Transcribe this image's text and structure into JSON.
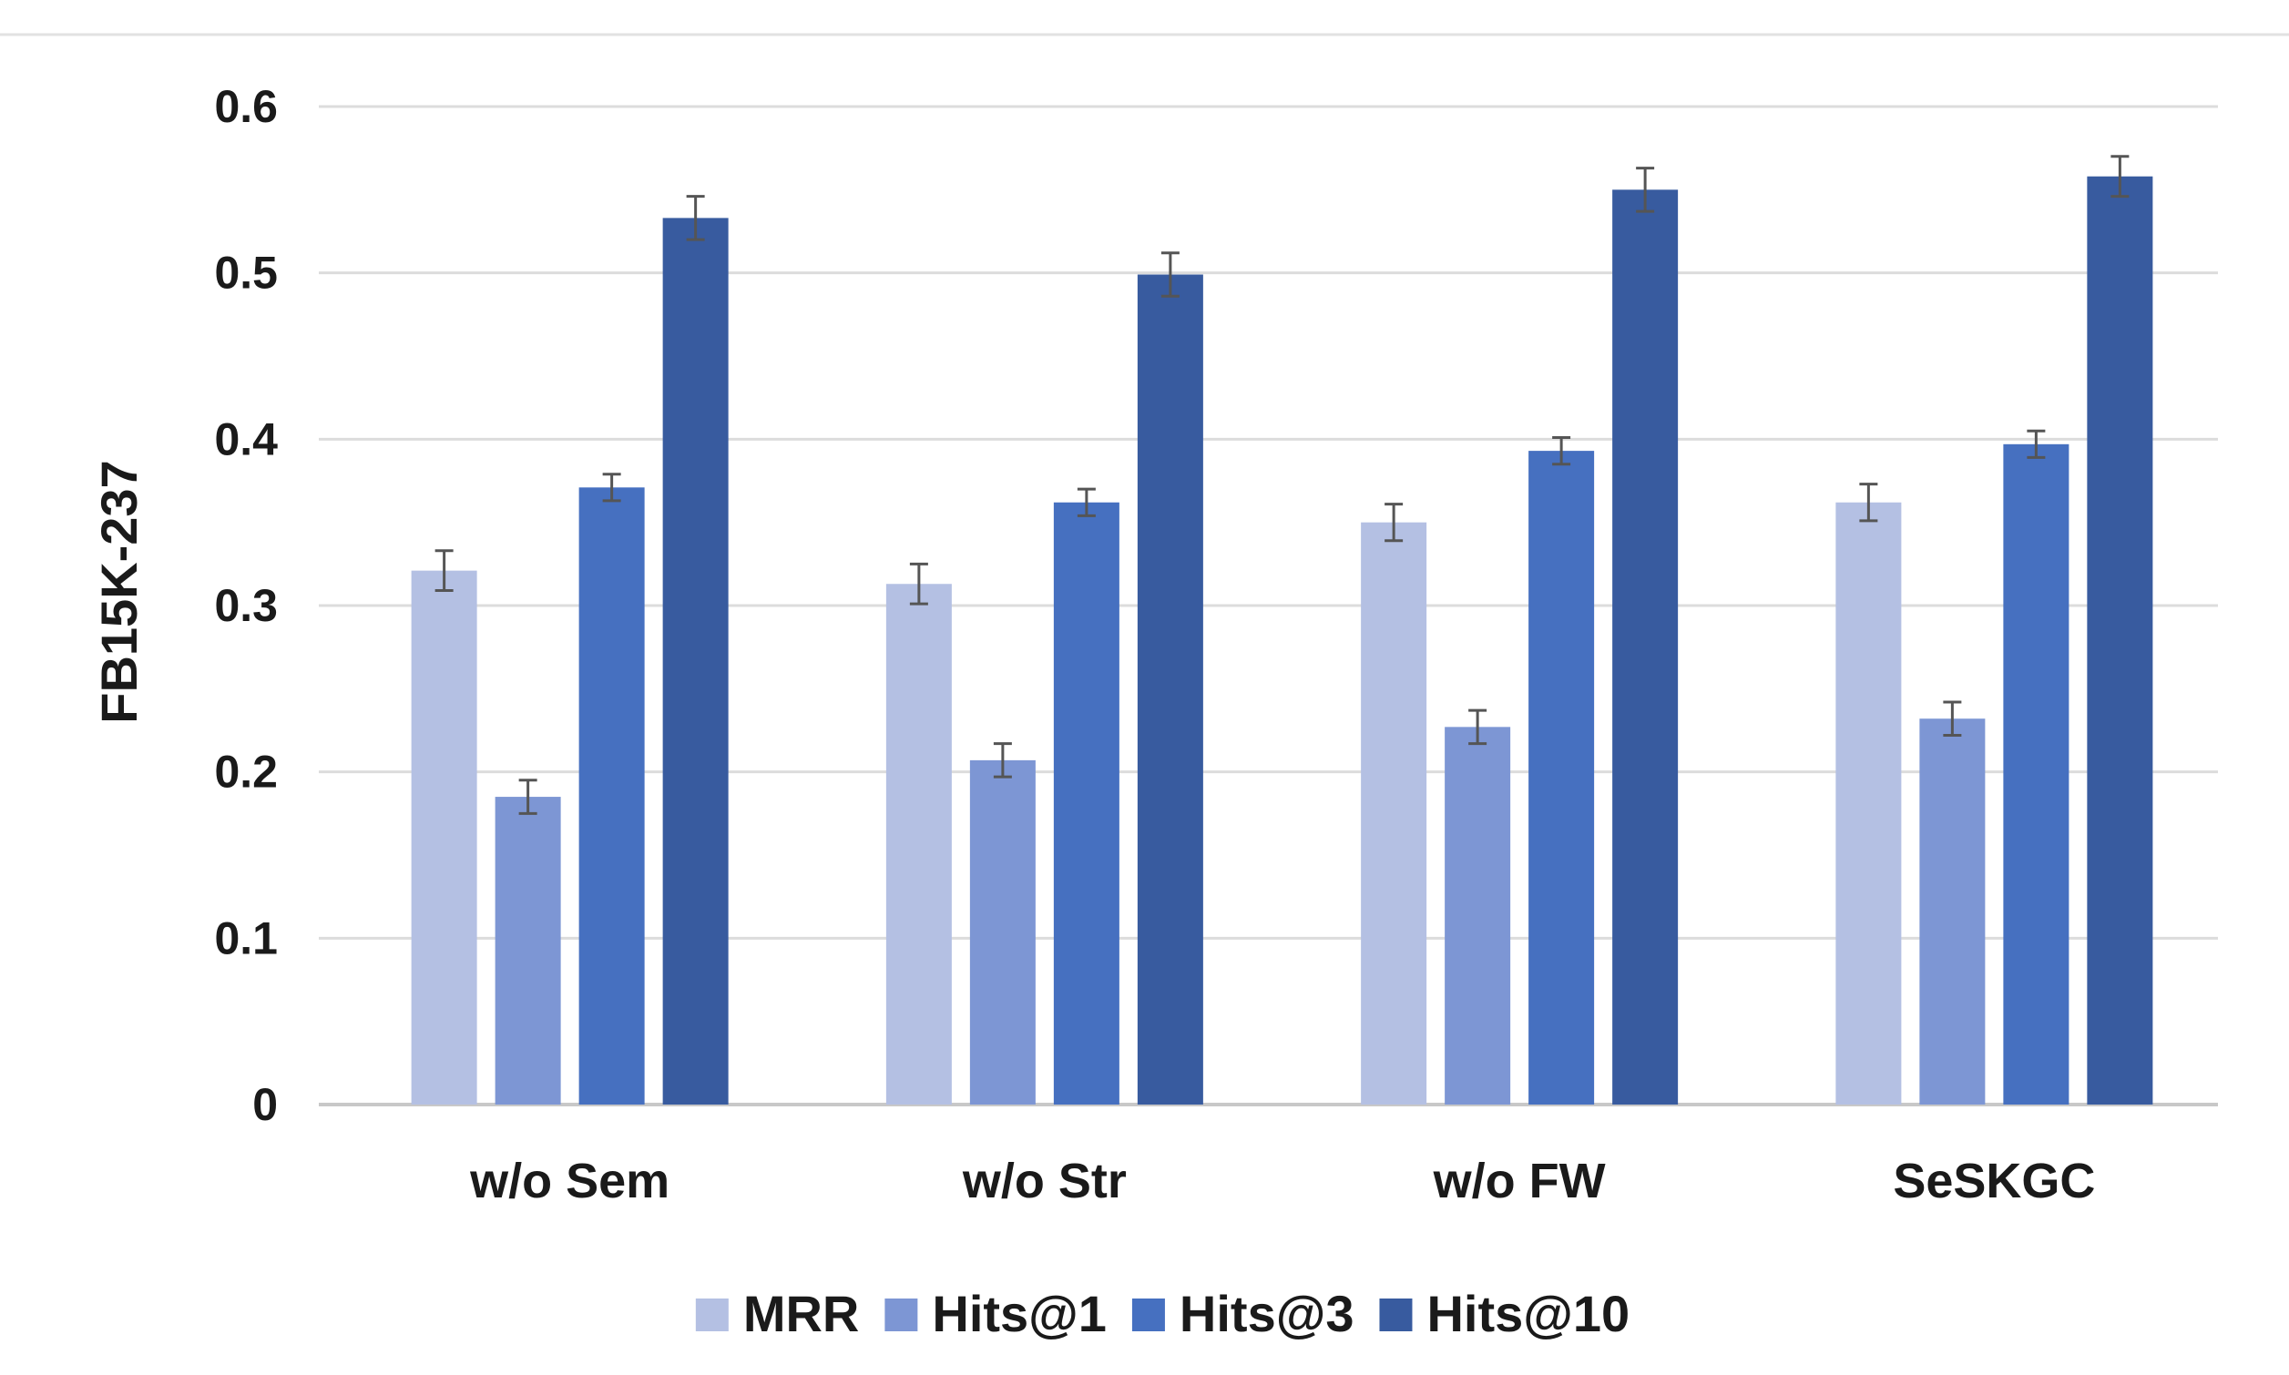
{
  "chart_data": {
    "type": "bar",
    "title": "",
    "xlabel": "",
    "ylabel": "FB15K-237",
    "ylim": [
      0,
      0.6
    ],
    "yticks": [
      "0",
      "0.1",
      "0.2",
      "0.3",
      "0.4",
      "0.5",
      "0.6"
    ],
    "grid": true,
    "legend_position": "bottom",
    "categories": [
      "w/o Sem",
      "w/o Str",
      "w/o FW",
      "SeSKGC"
    ],
    "series": [
      {
        "name": "MRR",
        "color": "#b4c0e3",
        "values": [
          0.321,
          0.313,
          0.35,
          0.362
        ],
        "errors": [
          0.012,
          0.012,
          0.011,
          0.011
        ]
      },
      {
        "name": "Hits@1",
        "color": "#7d96d4",
        "values": [
          0.185,
          0.207,
          0.227,
          0.232
        ],
        "errors": [
          0.01,
          0.01,
          0.01,
          0.01
        ]
      },
      {
        "name": "Hits@3",
        "color": "#4670c0",
        "values": [
          0.371,
          0.362,
          0.393,
          0.397
        ],
        "errors": [
          0.008,
          0.008,
          0.008,
          0.008
        ]
      },
      {
        "name": "Hits@10",
        "color": "#385b9f",
        "values": [
          0.533,
          0.499,
          0.55,
          0.558
        ],
        "errors": [
          0.013,
          0.013,
          0.013,
          0.012
        ]
      }
    ]
  }
}
